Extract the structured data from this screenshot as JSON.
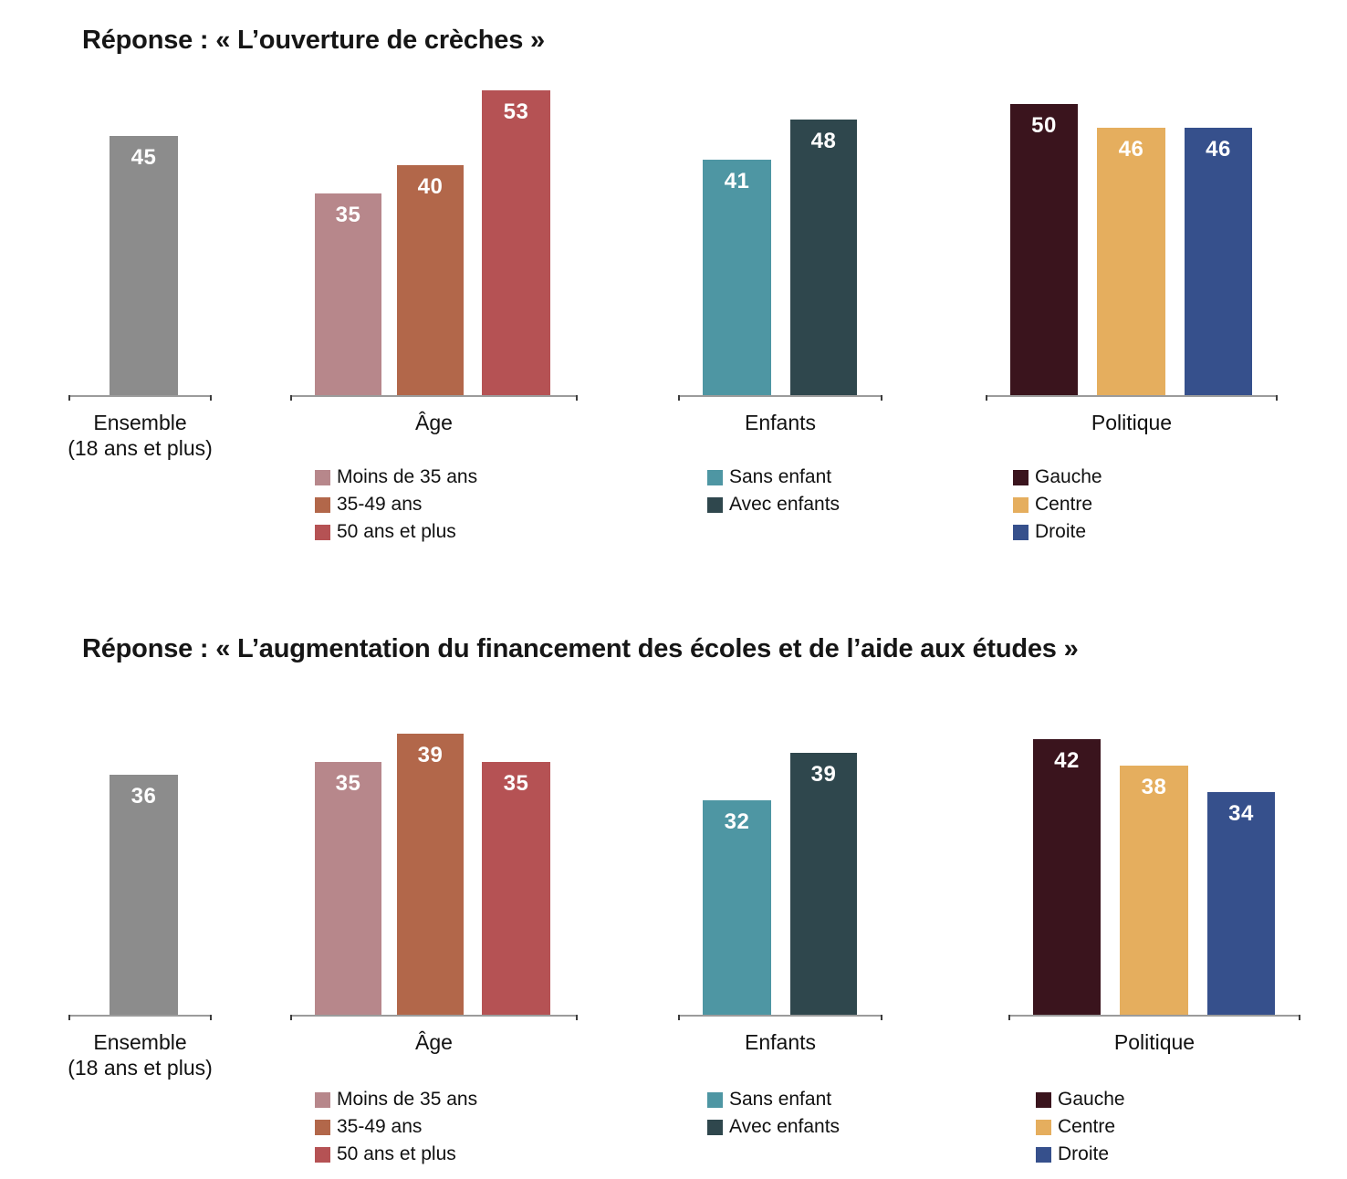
{
  "page": {
    "background_color": "#ffffff",
    "text_color": "#161616"
  },
  "chart_data": [
    {
      "type": "bar",
      "title": "Réponse : « L’ouverture de crèches »",
      "orientation": "vertical",
      "y_axis": "hidden",
      "value_labels": "inside-top-white-bold",
      "legend_position": "below-groups",
      "groups": [
        {
          "category": "Ensemble (18 ans et plus)",
          "label_lines": [
            "Ensemble",
            "(18 ans et plus)"
          ],
          "bars": [
            {
              "label": "Ensemble (18 ans et plus)",
              "value": 45,
              "color": "#8c8c8c"
            }
          ],
          "legend": []
        },
        {
          "category": "Âge",
          "label_lines": [
            "Âge"
          ],
          "bars": [
            {
              "label": "Moins de 35 ans",
              "value": 35,
              "color": "#b7878b"
            },
            {
              "label": "35-49 ans",
              "value": 40,
              "color": "#b2674a"
            },
            {
              "label": "50 ans et plus",
              "value": 53,
              "color": "#b55254"
            }
          ],
          "legend": [
            {
              "label": "Moins de 35 ans",
              "color": "#b7878b"
            },
            {
              "label": "35-49 ans",
              "color": "#b2674a"
            },
            {
              "label": "50 ans et plus",
              "color": "#b55254"
            }
          ]
        },
        {
          "category": "Enfants",
          "label_lines": [
            "Enfants"
          ],
          "bars": [
            {
              "label": "Sans enfant",
              "value": 41,
              "color": "#4e96a3"
            },
            {
              "label": "Avec enfants",
              "value": 48,
              "color": "#2f474d"
            }
          ],
          "legend": [
            {
              "label": "Sans enfant",
              "color": "#4e96a3"
            },
            {
              "label": "Avec enfants",
              "color": "#2f474d"
            }
          ]
        },
        {
          "category": "Politique",
          "label_lines": [
            "Politique"
          ],
          "bars": [
            {
              "label": "Gauche",
              "value": 50,
              "color": "#3a141d"
            },
            {
              "label": "Centre",
              "value": 46,
              "color": "#e5ae5e"
            },
            {
              "label": "Droite",
              "value": 46,
              "color": "#36508c"
            }
          ],
          "legend": [
            {
              "label": "Gauche",
              "color": "#3a141d"
            },
            {
              "label": "Centre",
              "color": "#e5ae5e"
            },
            {
              "label": "Droite",
              "color": "#36508c"
            }
          ]
        }
      ]
    },
    {
      "type": "bar",
      "title": "Réponse : « L’augmentation du financement des écoles et de l’aide aux études »",
      "orientation": "vertical",
      "y_axis": "hidden",
      "value_labels": "inside-top-white-bold",
      "legend_position": "below-groups",
      "groups": [
        {
          "category": "Ensemble (18 ans et plus)",
          "label_lines": [
            "Ensemble",
            "(18 ans et plus)"
          ],
          "bars": [
            {
              "label": "Ensemble (18 ans et plus)",
              "value": 36,
              "color": "#8c8c8c"
            }
          ],
          "legend": []
        },
        {
          "category": "Âge",
          "label_lines": [
            "Âge"
          ],
          "bars": [
            {
              "label": "Moins de 35 ans",
              "value": 35,
              "color": "#b7878b"
            },
            {
              "label": "35-49 ans",
              "value": 39,
              "color": "#b2674a"
            },
            {
              "label": "50 ans et plus",
              "value": 35,
              "color": "#b55254"
            }
          ],
          "legend": [
            {
              "label": "Moins de 35 ans",
              "color": "#b7878b"
            },
            {
              "label": "35-49 ans",
              "color": "#b2674a"
            },
            {
              "label": "50 ans et plus",
              "color": "#b55254"
            }
          ]
        },
        {
          "category": "Enfants",
          "label_lines": [
            "Enfants"
          ],
          "bars": [
            {
              "label": "Sans enfant",
              "value": 32,
              "color": "#4e96a3"
            },
            {
              "label": "Avec enfants",
              "value": 39,
              "color": "#2f474d"
            }
          ],
          "legend": [
            {
              "label": "Sans enfant",
              "color": "#4e96a3"
            },
            {
              "label": "Avec enfants",
              "color": "#2f474d"
            }
          ]
        },
        {
          "category": "Politique",
          "label_lines": [
            "Politique"
          ],
          "bars": [
            {
              "label": "Gauche",
              "value": 42,
              "color": "#3a141d"
            },
            {
              "label": "Centre",
              "value": 38,
              "color": "#e5ae5e"
            },
            {
              "label": "Droite",
              "value": 34,
              "color": "#36508c"
            }
          ],
          "legend": [
            {
              "label": "Gauche",
              "color": "#3a141d"
            },
            {
              "label": "Centre",
              "color": "#e5ae5e"
            },
            {
              "label": "Droite",
              "color": "#36508c"
            }
          ]
        }
      ]
    }
  ]
}
